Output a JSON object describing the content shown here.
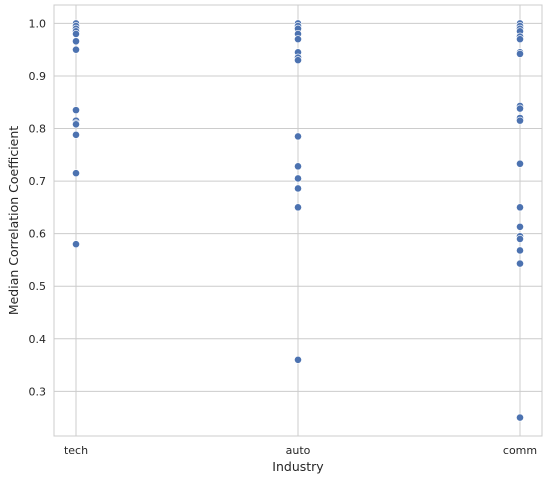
{
  "chart_data": {
    "type": "scatter",
    "xlabel": "Industry",
    "ylabel": "Median Correlation Coefficient",
    "categories": [
      "tech",
      "auto",
      "comm"
    ],
    "yticks": [
      0.3,
      0.4,
      0.5,
      0.6,
      0.7,
      0.8,
      0.9,
      1.0
    ],
    "ylim": [
      0.215,
      1.035
    ],
    "grid": true,
    "colors": {
      "marker": "#4c72b0",
      "grid": "#cccccc",
      "background": "#ffffff"
    },
    "points": [
      {
        "x": "tech",
        "y": 1.0
      },
      {
        "x": "tech",
        "y": 0.995
      },
      {
        "x": "tech",
        "y": 0.99
      },
      {
        "x": "tech",
        "y": 0.985
      },
      {
        "x": "tech",
        "y": 0.98
      },
      {
        "x": "tech",
        "y": 0.966
      },
      {
        "x": "tech",
        "y": 0.95
      },
      {
        "x": "tech",
        "y": 0.835
      },
      {
        "x": "tech",
        "y": 0.815
      },
      {
        "x": "tech",
        "y": 0.81
      },
      {
        "x": "tech",
        "y": 0.808
      },
      {
        "x": "tech",
        "y": 0.788
      },
      {
        "x": "tech",
        "y": 0.715
      },
      {
        "x": "tech",
        "y": 0.58
      },
      {
        "x": "auto",
        "y": 1.0
      },
      {
        "x": "auto",
        "y": 0.995
      },
      {
        "x": "auto",
        "y": 0.99
      },
      {
        "x": "auto",
        "y": 0.98
      },
      {
        "x": "auto",
        "y": 0.97
      },
      {
        "x": "auto",
        "y": 0.945
      },
      {
        "x": "auto",
        "y": 0.935
      },
      {
        "x": "auto",
        "y": 0.93
      },
      {
        "x": "auto",
        "y": 0.785
      },
      {
        "x": "auto",
        "y": 0.728
      },
      {
        "x": "auto",
        "y": 0.705
      },
      {
        "x": "auto",
        "y": 0.686
      },
      {
        "x": "auto",
        "y": 0.65
      },
      {
        "x": "auto",
        "y": 0.36
      },
      {
        "x": "comm",
        "y": 1.0
      },
      {
        "x": "comm",
        "y": 0.995
      },
      {
        "x": "comm",
        "y": 0.99
      },
      {
        "x": "comm",
        "y": 0.985
      },
      {
        "x": "comm",
        "y": 0.975
      },
      {
        "x": "comm",
        "y": 0.97
      },
      {
        "x": "comm",
        "y": 0.945
      },
      {
        "x": "comm",
        "y": 0.942
      },
      {
        "x": "comm",
        "y": 0.843
      },
      {
        "x": "comm",
        "y": 0.838
      },
      {
        "x": "comm",
        "y": 0.82
      },
      {
        "x": "comm",
        "y": 0.815
      },
      {
        "x": "comm",
        "y": 0.733
      },
      {
        "x": "comm",
        "y": 0.65
      },
      {
        "x": "comm",
        "y": 0.613
      },
      {
        "x": "comm",
        "y": 0.595
      },
      {
        "x": "comm",
        "y": 0.59
      },
      {
        "x": "comm",
        "y": 0.568
      },
      {
        "x": "comm",
        "y": 0.543
      },
      {
        "x": "comm",
        "y": 0.25
      }
    ]
  }
}
